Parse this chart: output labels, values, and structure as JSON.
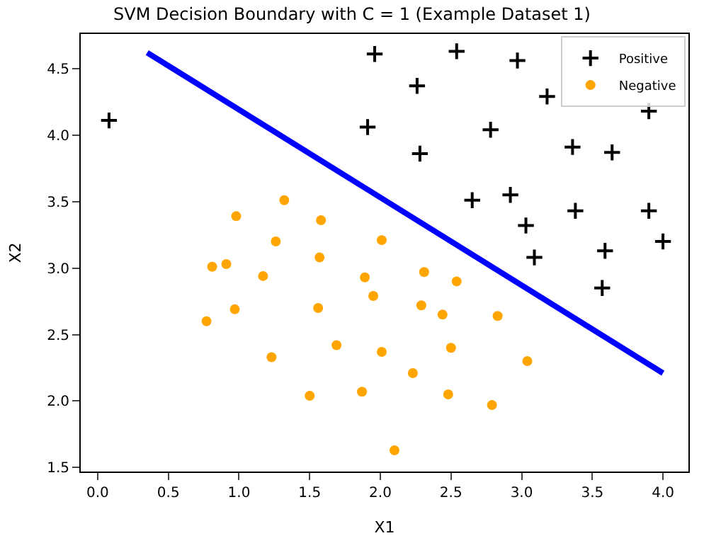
{
  "chart_data": {
    "type": "scatter",
    "title": "SVM Decision Boundary with C = 1 (Example Dataset 1)",
    "xlabel": "X1",
    "ylabel": "X2",
    "xlim": [
      -0.12,
      4.18
    ],
    "ylim": [
      1.47,
      4.76
    ],
    "xticks": [
      {
        "value": 0,
        "label": "0.0"
      },
      0.5,
      {
        "value": 1,
        "label": "1.0"
      },
      1.5,
      {
        "value": 2,
        "label": "2.0"
      },
      2.5,
      {
        "value": 3,
        "label": "3.0"
      },
      3.5,
      {
        "value": 4,
        "label": "4.0"
      }
    ],
    "yticks": [
      1.5,
      {
        "value": 2,
        "label": "2.0"
      },
      2.5,
      {
        "value": 3,
        "label": "3.0"
      },
      3.5,
      {
        "value": 4,
        "label": "4.0"
      },
      4.5
    ],
    "legend": "top right",
    "series": [
      {
        "name": "Positive",
        "color": "#000000",
        "marker": "cross",
        "x": [
          0.08,
          1.96,
          2.26,
          2.54,
          2.97,
          3.18,
          1.91,
          2.78,
          2.28,
          3.36,
          3.64,
          3.9,
          2.65,
          2.92,
          3.03,
          3.38,
          3.9,
          4.0,
          3.09,
          3.59,
          3.57
        ],
        "values": [
          4.11,
          4.61,
          4.37,
          4.63,
          4.56,
          4.29,
          4.06,
          4.04,
          3.86,
          3.91,
          3.87,
          4.18,
          3.51,
          3.55,
          3.32,
          3.43,
          3.43,
          3.2,
          3.08,
          3.13,
          2.85
        ]
      },
      {
        "name": "Negative",
        "color": "#ffa500",
        "marker": "circle",
        "x": [
          1.32,
          0.98,
          1.58,
          1.26,
          2.01,
          1.57,
          0.81,
          0.91,
          1.17,
          1.89,
          2.31,
          2.54,
          1.95,
          0.97,
          1.56,
          2.29,
          2.44,
          2.83,
          0.77,
          1.69,
          2.5,
          2.01,
          1.23,
          3.04,
          2.23,
          1.87,
          1.5,
          2.48,
          2.79,
          2.1
        ],
        "values": [
          3.51,
          3.39,
          3.36,
          3.2,
          3.21,
          3.08,
          3.01,
          3.03,
          2.94,
          2.93,
          2.97,
          2.9,
          2.79,
          2.69,
          2.7,
          2.72,
          2.65,
          2.64,
          2.6,
          2.42,
          2.4,
          2.37,
          2.33,
          2.3,
          2.21,
          2.07,
          2.04,
          2.05,
          1.97,
          1.63
        ]
      },
      {
        "type": "line",
        "color": "#0000ff",
        "x": [
          0.35,
          4.0
        ],
        "values": [
          4.62,
          2.21
        ]
      }
    ]
  }
}
